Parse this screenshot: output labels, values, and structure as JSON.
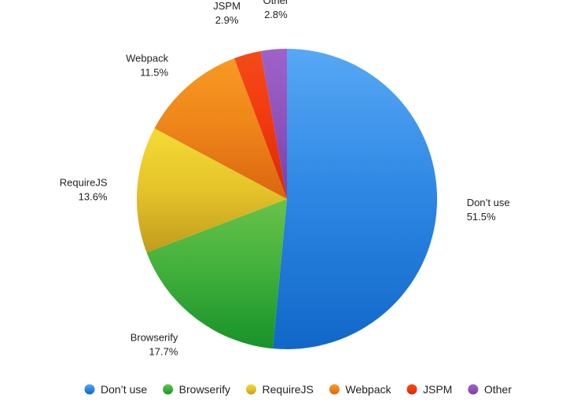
{
  "chart_data": {
    "type": "pie",
    "title": "",
    "legend_position": "bottom",
    "slices": [
      {
        "label": "Don’t use",
        "value": 51.5,
        "value_label": "51.5%",
        "color": "#2C86E2",
        "color_light": "#57A8F5",
        "color_dark": "#1167C8"
      },
      {
        "label": "Browserify",
        "value": 17.7,
        "value_label": "17.7%",
        "color": "#3FAF3A",
        "color_light": "#68C34A",
        "color_dark": "#18922A"
      },
      {
        "label": "RequireJS",
        "value": 13.6,
        "value_label": "13.6%",
        "color": "#E4C32A",
        "color_light": "#F5DB34",
        "color_dark": "#C19C1D"
      },
      {
        "label": "Webpack",
        "value": 11.5,
        "value_label": "11.5%",
        "color": "#EE8419",
        "color_light": "#F79A22",
        "color_dark": "#D9650F"
      },
      {
        "label": "JSPM",
        "value": 2.9,
        "value_label": "2.9%",
        "color": "#F0390F",
        "color_light": "#F54A18",
        "color_dark": "#D62A07"
      },
      {
        "label": "Other",
        "value": 2.8,
        "value_label": "2.8%",
        "color": "#8F52BC",
        "color_light": "#9E63CB",
        "color_dark": "#7A3FAA"
      }
    ]
  }
}
